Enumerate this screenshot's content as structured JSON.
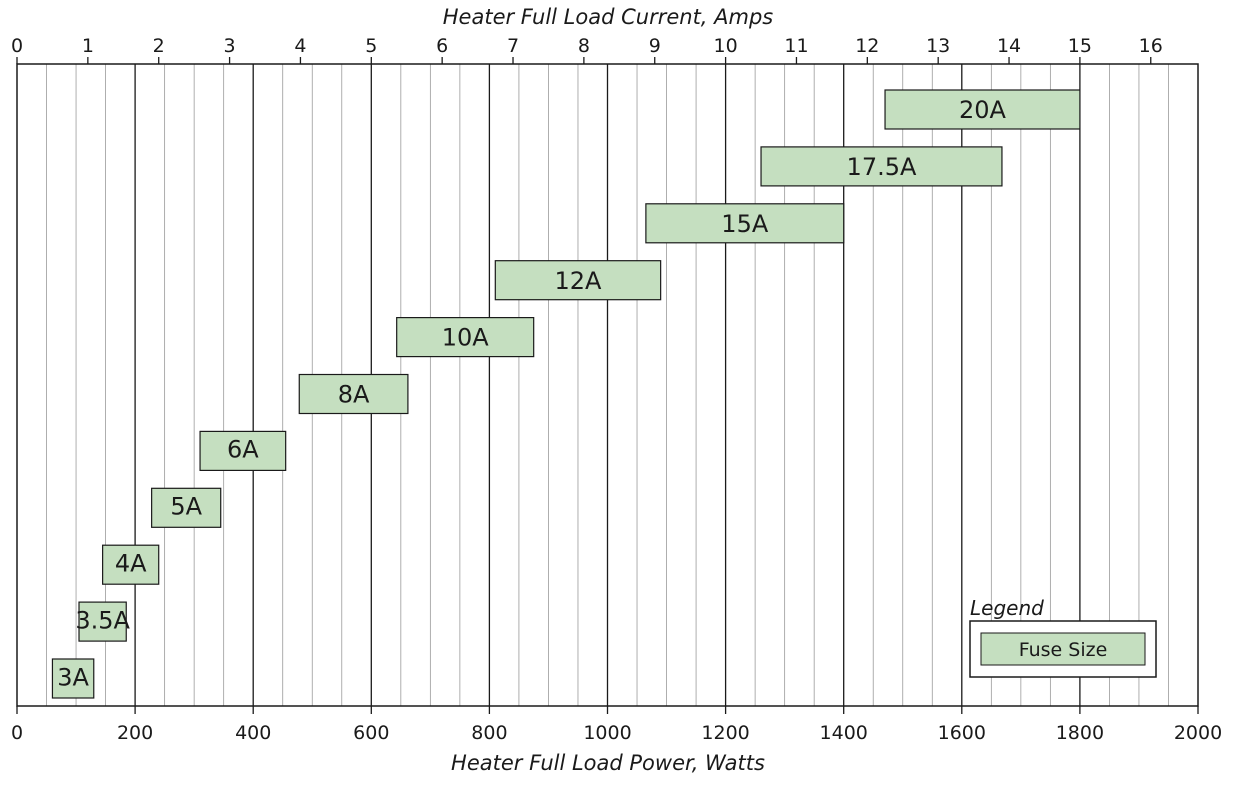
{
  "chart_data": {
    "type": "bar",
    "orientation": "horizontal-range",
    "title": "",
    "xlabel": "Heater Full Load Power, Watts",
    "x2label": "Heater Full Load Current, Amps",
    "xlim": [
      0,
      2000
    ],
    "x_ticks": [
      0,
      200,
      400,
      600,
      800,
      1000,
      1200,
      1400,
      1600,
      1800,
      2000
    ],
    "x_tick_labels": [
      "0",
      "200",
      "400",
      "600",
      "800",
      "1000",
      "1200",
      "1400",
      "1600",
      "1800",
      "2000"
    ],
    "x_minor_step": 50,
    "x2_ticks": [
      0,
      1,
      2,
      3,
      4,
      5,
      6,
      7,
      8,
      9,
      10,
      11,
      12,
      13,
      14,
      15,
      16
    ],
    "x2_tick_labels": [
      "0",
      "1",
      "2",
      "3",
      "4",
      "5",
      "6",
      "7",
      "8",
      "9",
      "10",
      "11",
      "12",
      "13",
      "14",
      "15",
      "16"
    ],
    "x2_watts_per_amp": 120,
    "grid": true,
    "series": [
      {
        "name": "Fuse Size",
        "color": "#c5dfc0",
        "bars": [
          {
            "label": "3A",
            "start": 60,
            "end": 130
          },
          {
            "label": "3.5A",
            "start": 105,
            "end": 185
          },
          {
            "label": "4A",
            "start": 145,
            "end": 240
          },
          {
            "label": "5A",
            "start": 228,
            "end": 345
          },
          {
            "label": "6A",
            "start": 310,
            "end": 455
          },
          {
            "label": "8A",
            "start": 478,
            "end": 662
          },
          {
            "label": "10A",
            "start": 643,
            "end": 875
          },
          {
            "label": "12A",
            "start": 810,
            "end": 1090
          },
          {
            "label": "15A",
            "start": 1065,
            "end": 1400
          },
          {
            "label": "17.5A",
            "start": 1260,
            "end": 1668
          },
          {
            "label": "20A",
            "start": 1470,
            "end": 1800
          }
        ]
      }
    ],
    "legend": {
      "title": "Legend",
      "position": "bottom-right",
      "entries": [
        "Fuse Size"
      ]
    }
  }
}
